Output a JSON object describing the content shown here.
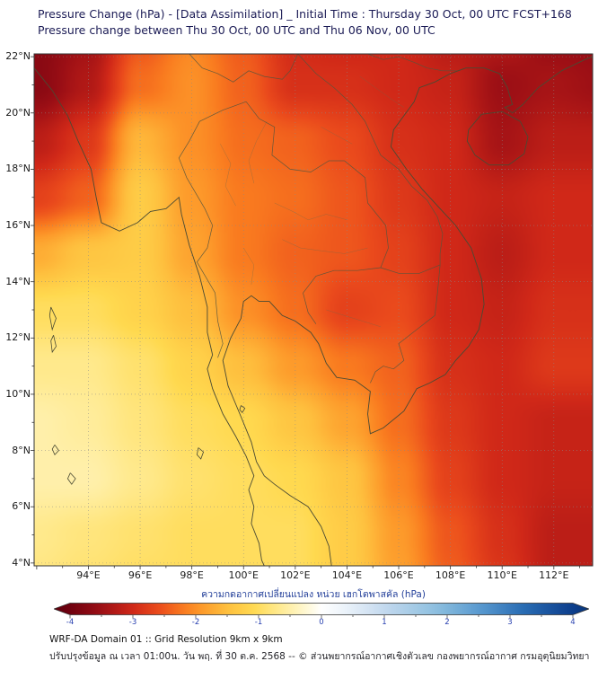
{
  "header": {
    "title_line1": "Pressure Change (hPa) - [Data Assimilation] _ Initial Time : Thursday 30 Oct, 00 UTC FCST+168",
    "title_line2": "Pressure change between Thu 30 Oct, 00 UTC and Thu 06 Nov, 00 UTC"
  },
  "chart_data": {
    "type": "heatmap",
    "title": "Pressure Change (hPa) - [Data Assimilation]",
    "initial_time": "Thursday 30 Oct, 00 UTC",
    "forecast_hour": "FCST+168",
    "valid_statement": "Pressure change between Thu 30 Oct, 00 UTC and Thu 06 Nov, 00 UTC",
    "extent": {
      "lon_min": 91.9,
      "lon_max": 113.5,
      "lat_min": 3.9,
      "lat_max": 22.1
    },
    "x_ticks": [
      {
        "lon": 94,
        "label": "94°E"
      },
      {
        "lon": 96,
        "label": "96°E"
      },
      {
        "lon": 98,
        "label": "98°E"
      },
      {
        "lon": 100,
        "label": "100°E"
      },
      {
        "lon": 102,
        "label": "102°E"
      },
      {
        "lon": 104,
        "label": "104°E"
      },
      {
        "lon": 106,
        "label": "106°E"
      },
      {
        "lon": 108,
        "label": "108°E"
      },
      {
        "lon": 110,
        "label": "110°E"
      },
      {
        "lon": 112,
        "label": "112°E"
      }
    ],
    "y_ticks": [
      {
        "lat": 22,
        "label": "22°N"
      },
      {
        "lat": 20,
        "label": "20°N"
      },
      {
        "lat": 18,
        "label": "18°N"
      },
      {
        "lat": 16,
        "label": "16°N"
      },
      {
        "lat": 14,
        "label": "14°N"
      },
      {
        "lat": 12,
        "label": "12°N"
      },
      {
        "lat": 10,
        "label": "10°N"
      },
      {
        "lat": 8,
        "label": "8°N"
      },
      {
        "lat": 6,
        "label": "6°N"
      },
      {
        "lat": 4,
        "label": "4°N"
      }
    ],
    "grid": {
      "units": "hPa",
      "lons": [
        92,
        94,
        96,
        98,
        100,
        102,
        104,
        106,
        108,
        110,
        112,
        114
      ],
      "lats": [
        23,
        21,
        19,
        17,
        15,
        13,
        11,
        9,
        7,
        5,
        3
      ],
      "values": [
        [
          -3.7,
          -3.5,
          -2.6,
          -2.1,
          -2.5,
          -3.0,
          -3.1,
          -3.0,
          -3.3,
          -3.2,
          -3.6,
          -3.6
        ],
        [
          -3.7,
          -3.3,
          -2.3,
          -2.0,
          -2.4,
          -2.9,
          -2.9,
          -3.0,
          -3.1,
          -3.5,
          -3.4,
          -3.5
        ],
        [
          -3.2,
          -2.8,
          -1.6,
          -2.0,
          -2.3,
          -2.4,
          -2.6,
          -2.9,
          -3.0,
          -3.4,
          -3.2,
          -3.2
        ],
        [
          -2.7,
          -2.4,
          -1.3,
          -1.9,
          -2.2,
          -2.3,
          -2.5,
          -2.8,
          -3.0,
          -3.1,
          -3.0,
          -3.0
        ],
        [
          -1.7,
          -1.4,
          -1.3,
          -1.8,
          -2.2,
          -2.4,
          -2.5,
          -2.7,
          -3.0,
          -3.2,
          -3.0,
          -3.0
        ],
        [
          -1.0,
          -1.0,
          -1.2,
          -1.5,
          -2.0,
          -2.3,
          -2.7,
          -2.6,
          -3.0,
          -3.1,
          -2.9,
          -2.9
        ],
        [
          -0.7,
          -0.7,
          -0.9,
          -1.2,
          -1.5,
          -1.9,
          -2.2,
          -2.4,
          -2.9,
          -3.0,
          -2.8,
          -2.8
        ],
        [
          -0.5,
          -0.6,
          -0.8,
          -1.0,
          -1.1,
          -1.4,
          -1.8,
          -2.3,
          -2.8,
          -3.0,
          -3.1,
          -3.1
        ],
        [
          -0.5,
          -0.5,
          -0.7,
          -0.9,
          -1.0,
          -1.1,
          -1.4,
          -2.1,
          -2.7,
          -3.0,
          -3.1,
          -3.1
        ],
        [
          -0.7,
          -0.8,
          -0.9,
          -1.0,
          -1.0,
          -1.0,
          -1.3,
          -1.9,
          -2.5,
          -2.9,
          -3.2,
          -3.2
        ],
        [
          -0.8,
          -0.9,
          -1.0,
          -1.0,
          -1.0,
          -1.0,
          -1.3,
          -1.8,
          -2.4,
          -2.8,
          -3.2,
          -3.2
        ]
      ]
    },
    "colormap": [
      {
        "v": -4.5,
        "c": "#53000a"
      },
      {
        "v": -4.0,
        "c": "#6e000f"
      },
      {
        "v": -3.5,
        "c": "#9c0f15"
      },
      {
        "v": -3.0,
        "c": "#d02818"
      },
      {
        "v": -2.6,
        "c": "#ea4a1c"
      },
      {
        "v": -2.2,
        "c": "#f97a1f"
      },
      {
        "v": -1.9,
        "c": "#fd9b2b"
      },
      {
        "v": -1.5,
        "c": "#febf3e"
      },
      {
        "v": -1.1,
        "c": "#ffd94f"
      },
      {
        "v": -0.7,
        "c": "#ffe98c"
      },
      {
        "v": -0.3,
        "c": "#fff6c9"
      },
      {
        "v": 0.0,
        "c": "#ffffff"
      },
      {
        "v": 0.5,
        "c": "#e4eef8"
      },
      {
        "v": 1.0,
        "c": "#c3d9ee"
      },
      {
        "v": 1.8,
        "c": "#8fc0e0"
      },
      {
        "v": 2.5,
        "c": "#5a9bd0"
      },
      {
        "v": 3.2,
        "c": "#2a6db4"
      },
      {
        "v": 4.0,
        "c": "#0b3d8c"
      },
      {
        "v": 4.5,
        "c": "#082d66"
      }
    ],
    "colorbar": {
      "label": "ความกดอากาศเปลี่ยนแปลง หน่วย เฮกโตพาสคัล (hPa)",
      "range": [
        -4,
        4
      ],
      "tick_values": [
        -4,
        -3,
        -2,
        -1,
        0,
        1,
        2,
        3,
        4
      ],
      "minor_tick_step": 0.5,
      "left_end_color": "#53000a",
      "zero_color": "#ffffff",
      "right_end_color": "#082d66"
    },
    "legend_position": "bottom",
    "grid_on": true
  },
  "footer": {
    "line1": "WRF-DA Domain 01 :: Grid Resolution 9km x 9km",
    "line2": "ปรับปรุงข้อมูล ณ เวลา 01:00น. วัน พฤ. ที่ 30 ต.ค. 2568 -- © ส่วนพยากรณ์อากาศเชิงตัวเลข กองพยากรณ์อากาศ กรมอุตุนิยมวิทยา"
  }
}
